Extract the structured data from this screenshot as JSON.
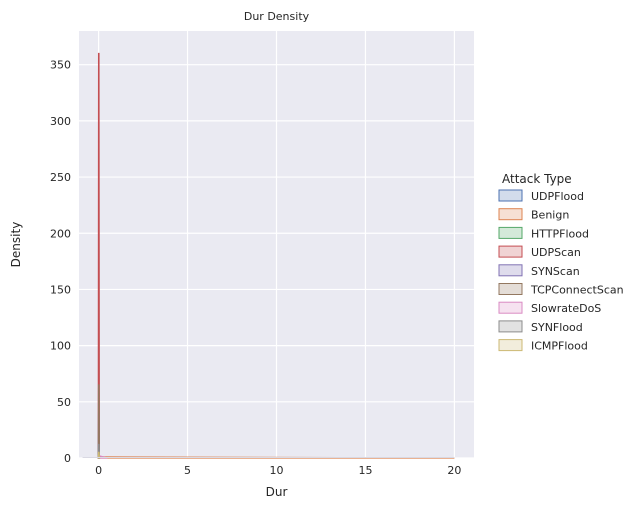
{
  "chart_data": {
    "type": "area",
    "title": "Dur Density",
    "xlabel": "Dur",
    "ylabel": "Density",
    "xlim": [
      -1.1,
      21.1
    ],
    "ylim": [
      0,
      380
    ],
    "xticks": [
      0,
      5,
      10,
      15,
      20
    ],
    "yticks": [
      0,
      50,
      100,
      150,
      200,
      250,
      300,
      350
    ],
    "grid": true,
    "legend_title": "Attack Type",
    "legend_position": "right",
    "series": [
      {
        "name": "UDPFlood",
        "color": "#4c72b0",
        "peak_x": 0,
        "peak_y": 8,
        "x_end": 0.05
      },
      {
        "name": "Benign",
        "color": "#dd8452",
        "peak_x": 0,
        "peak_y": 1,
        "x_end": 20
      },
      {
        "name": "HTTPFlood",
        "color": "#55a868",
        "peak_x": 0,
        "peak_y": 6,
        "x_end": 0.05
      },
      {
        "name": "UDPScan",
        "color": "#c44e52",
        "peak_x": 0,
        "peak_y": 360,
        "x_end": 0.02
      },
      {
        "name": "SYNScan",
        "color": "#8172b3",
        "peak_x": 0,
        "peak_y": 40,
        "x_end": 0.03
      },
      {
        "name": "TCPConnectScan",
        "color": "#937860",
        "peak_x": 0,
        "peak_y": 65,
        "x_end": 0.03
      },
      {
        "name": "SlowrateDoS",
        "color": "#da8bc3",
        "peak_x": 0,
        "peak_y": 2,
        "x_end": 0.5
      },
      {
        "name": "SYNFlood",
        "color": "#8c8c8c",
        "peak_x": 0,
        "peak_y": 12,
        "x_end": 0.05
      },
      {
        "name": "ICMPFlood",
        "color": "#ccb974",
        "peak_x": 0,
        "peak_y": 5,
        "x_end": 0.05
      }
    ]
  }
}
